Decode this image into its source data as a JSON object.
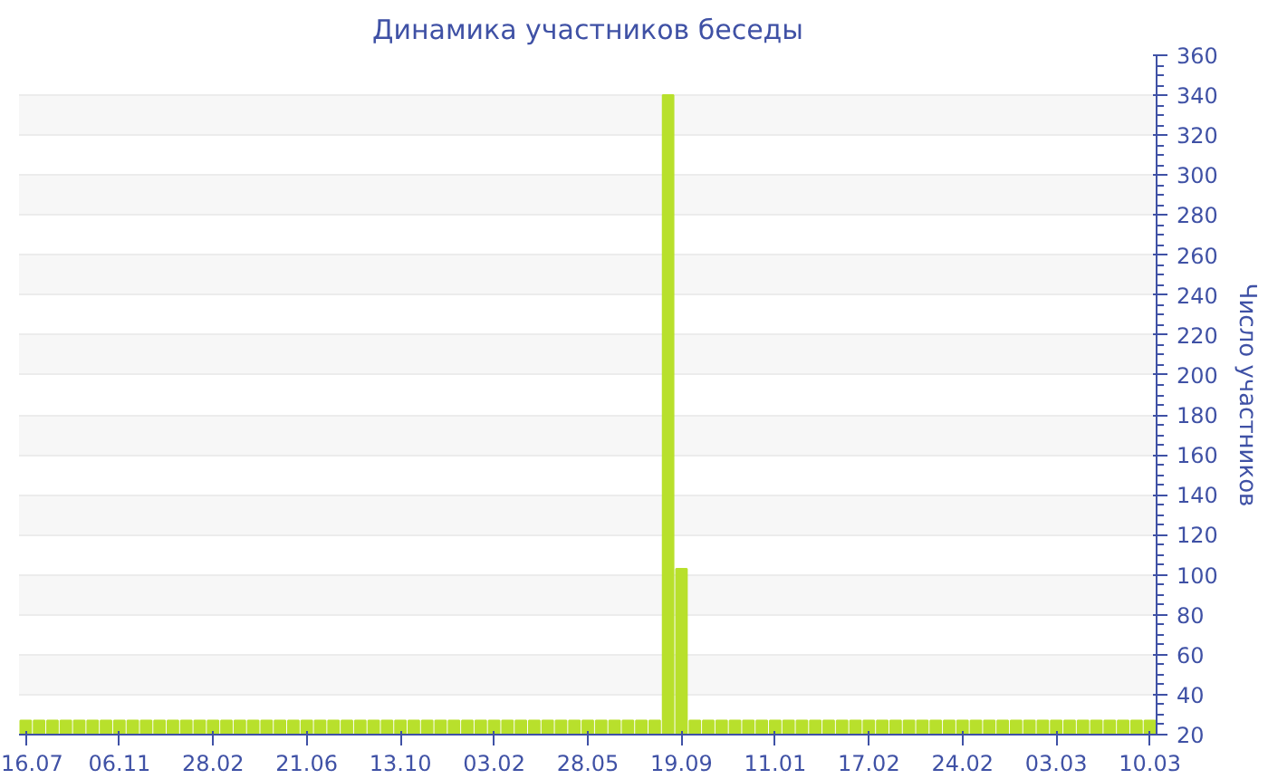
{
  "chart_data": {
    "type": "bar",
    "title": "Динамика участников беседы",
    "ylabel": "Число участников",
    "categories": [
      "16.07",
      null,
      null,
      null,
      null,
      null,
      null,
      "06.11",
      null,
      null,
      null,
      null,
      null,
      null,
      "28.02",
      null,
      null,
      null,
      null,
      null,
      null,
      "21.06",
      null,
      null,
      null,
      null,
      null,
      null,
      "13.10",
      null,
      null,
      null,
      null,
      null,
      null,
      "03.02",
      null,
      null,
      null,
      null,
      null,
      null,
      "28.05",
      null,
      null,
      null,
      null,
      null,
      null,
      "19.09",
      null,
      null,
      null,
      null,
      null,
      null,
      "11.01",
      null,
      null,
      null,
      null,
      null,
      null,
      "17.02",
      null,
      null,
      null,
      null,
      null,
      null,
      "24.02",
      null,
      null,
      null,
      null,
      null,
      null,
      "03.03",
      null,
      null,
      null,
      null,
      null,
      null,
      "10.03"
    ],
    "values": [
      27,
      27,
      27,
      27,
      27,
      27,
      27,
      27,
      27,
      27,
      27,
      27,
      27,
      27,
      27,
      27,
      27,
      27,
      27,
      27,
      27,
      27,
      27,
      27,
      27,
      27,
      27,
      27,
      27,
      27,
      27,
      27,
      27,
      27,
      27,
      27,
      27,
      27,
      27,
      27,
      27,
      27,
      27,
      27,
      27,
      27,
      27,
      27,
      340,
      103,
      27,
      27,
      27,
      27,
      27,
      27,
      27,
      27,
      27,
      27,
      27,
      27,
      27,
      27,
      27,
      27,
      27,
      27,
      27,
      27,
      27,
      27,
      27,
      27,
      27,
      27,
      27,
      27,
      27,
      27,
      27,
      27,
      27,
      27,
      27
    ],
    "color": "#b8e02c",
    "ylim": [
      20,
      360
    ],
    "yticks": [
      20,
      40,
      60,
      80,
      100,
      120,
      140,
      160,
      180,
      200,
      220,
      240,
      260,
      280,
      300,
      320,
      340,
      360
    ],
    "grid": "y"
  }
}
